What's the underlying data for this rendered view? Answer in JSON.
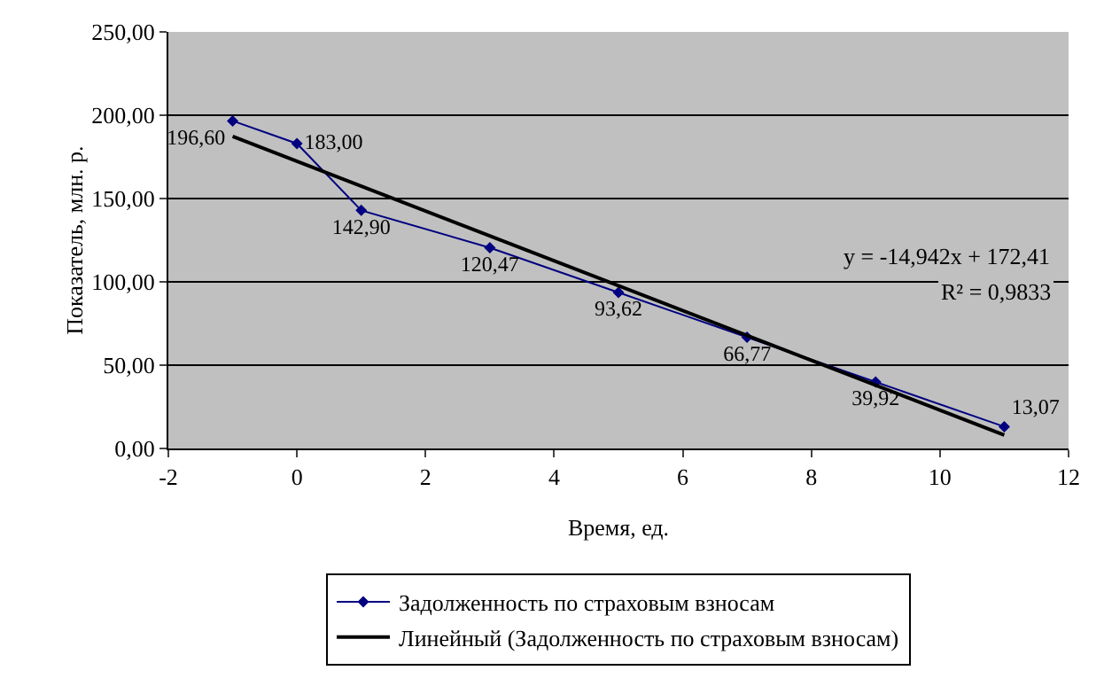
{
  "chart_data": {
    "type": "line",
    "xlabel": "Время, ед.",
    "ylabel": "Показатель, млн. р.",
    "x": [
      -1,
      0,
      1,
      3,
      5,
      7,
      9,
      11
    ],
    "series": [
      {
        "name": "Задолженность по страховым взносам",
        "color": "#000080",
        "values": [
          196.6,
          183.0,
          142.9,
          120.47,
          93.62,
          66.77,
          39.92,
          13.07
        ],
        "value_labels": [
          "196,60",
          "183,00",
          "142,90",
          "120,47",
          "93,62",
          "66,77",
          "39,92",
          "13,07"
        ],
        "marker": "diamond"
      },
      {
        "name": "Линейный (Задолженность по страховым взносам)",
        "type": "line",
        "color": "#000000",
        "x": [
          -1,
          11
        ],
        "values": [
          187.3,
          8.1
        ],
        "marker": "none"
      }
    ],
    "xlim": [
      -2,
      12
    ],
    "xticks": [
      -2,
      0,
      2,
      4,
      6,
      8,
      10,
      12
    ],
    "ylim": [
      0,
      250
    ],
    "yticks": [
      {
        "value": 0,
        "label": "0,00"
      },
      {
        "value": 50,
        "label": "50,00"
      },
      {
        "value": 100,
        "label": "100,00"
      },
      {
        "value": 150,
        "label": "150,00"
      },
      {
        "value": 200,
        "label": "200,00"
      },
      {
        "value": 250,
        "label": "250,00"
      }
    ],
    "grid": "y",
    "legend": "bottom",
    "annotations": [
      "y = -14,942x + 172,41",
      "R² = 0,9833"
    ]
  }
}
